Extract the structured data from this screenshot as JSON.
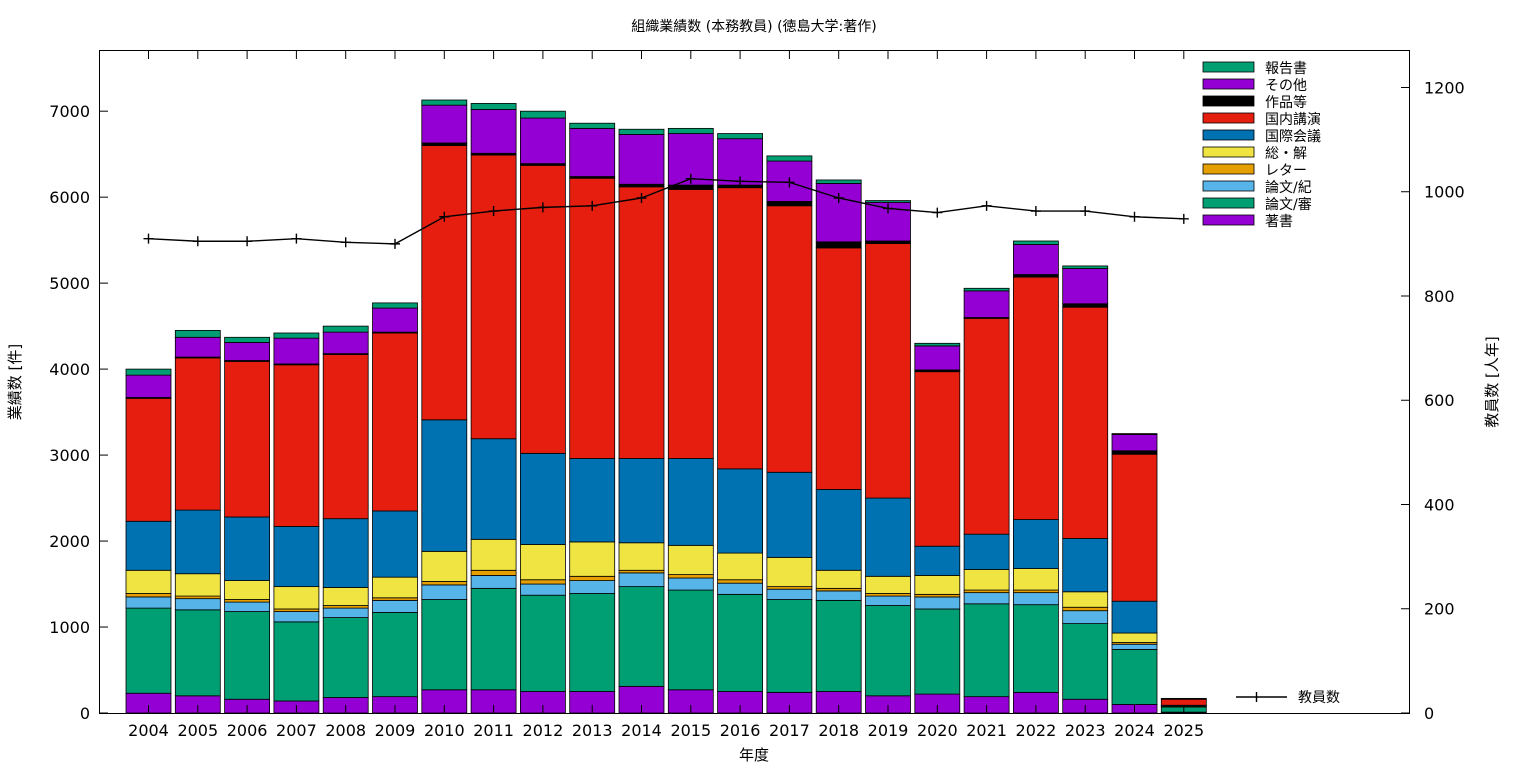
{
  "chart_data": {
    "type": "bar",
    "stacked": true,
    "title": "組織業績数 (本務教員) (徳島大学:著作)",
    "xlabel": "年度",
    "ylabel": "業績数 [件]",
    "y2label": "教員数 [人年]",
    "ylim": [
      0,
      7700
    ],
    "y2lim": [
      0,
      1270
    ],
    "yticks": [
      0,
      1000,
      2000,
      3000,
      4000,
      5000,
      6000,
      7000
    ],
    "y2ticks": [
      0,
      200,
      400,
      600,
      800,
      1000,
      1200
    ],
    "grid": false,
    "legend_position": "top-right",
    "categories": [
      "2004",
      "2005",
      "2006",
      "2007",
      "2008",
      "2009",
      "2010",
      "2011",
      "2012",
      "2013",
      "2014",
      "2015",
      "2016",
      "2017",
      "2018",
      "2019",
      "2020",
      "2021",
      "2022",
      "2023",
      "2024",
      "2025"
    ],
    "series": [
      {
        "name": "著書",
        "color": "#9400d3",
        "values": [
          230,
          200,
          160,
          140,
          180,
          190,
          270,
          270,
          250,
          250,
          310,
          270,
          250,
          240,
          250,
          200,
          220,
          190,
          240,
          160,
          100,
          10
        ]
      },
      {
        "name": "論文/審",
        "color": "#009e73",
        "values": [
          990,
          1000,
          1020,
          920,
          930,
          980,
          1050,
          1180,
          1120,
          1140,
          1160,
          1160,
          1130,
          1080,
          1060,
          1050,
          990,
          1080,
          1020,
          880,
          640,
          60
        ]
      },
      {
        "name": "論文/紀",
        "color": "#56b4e9",
        "values": [
          130,
          130,
          110,
          120,
          110,
          140,
          170,
          150,
          130,
          150,
          160,
          140,
          130,
          120,
          110,
          110,
          140,
          130,
          140,
          150,
          60,
          0
        ]
      },
      {
        "name": "レター",
        "color": "#e69f00",
        "values": [
          40,
          30,
          30,
          30,
          30,
          30,
          40,
          60,
          50,
          50,
          30,
          40,
          40,
          30,
          30,
          30,
          30,
          30,
          30,
          40,
          20,
          0
        ]
      },
      {
        "name": "総・解",
        "color": "#f0e442",
        "values": [
          270,
          260,
          220,
          260,
          210,
          240,
          350,
          360,
          410,
          400,
          320,
          340,
          310,
          340,
          210,
          200,
          220,
          240,
          250,
          180,
          110,
          10
        ]
      },
      {
        "name": "国際会議",
        "color": "#0072b2",
        "values": [
          570,
          740,
          740,
          700,
          800,
          770,
          1530,
          1170,
          1060,
          970,
          980,
          1010,
          980,
          990,
          940,
          910,
          340,
          410,
          570,
          620,
          370,
          10
        ]
      },
      {
        "name": "国内講演",
        "color": "#e51e10",
        "values": [
          1430,
          1770,
          1810,
          1880,
          1910,
          2070,
          3190,
          3300,
          3350,
          3260,
          3160,
          3130,
          3270,
          3100,
          2810,
          2960,
          2030,
          2510,
          2820,
          2690,
          1710,
          70
        ]
      },
      {
        "name": "作品等",
        "color": "#000000",
        "values": [
          10,
          10,
          10,
          10,
          10,
          10,
          30,
          20,
          20,
          20,
          30,
          50,
          30,
          50,
          70,
          30,
          20,
          10,
          30,
          40,
          40,
          0
        ]
      },
      {
        "name": "その他",
        "color": "#9400d3",
        "values": [
          260,
          230,
          210,
          300,
          250,
          280,
          440,
          510,
          530,
          560,
          580,
          600,
          540,
          470,
          680,
          450,
          280,
          310,
          350,
          410,
          190,
          0
        ]
      },
      {
        "name": "報告書",
        "color": "#009e73",
        "values": [
          70,
          80,
          60,
          60,
          70,
          60,
          60,
          70,
          80,
          60,
          60,
          60,
          60,
          60,
          40,
          20,
          30,
          30,
          40,
          30,
          10,
          10
        ]
      }
    ],
    "line": {
      "name": "教員数",
      "axis": "y2",
      "color": "#000000",
      "values": [
        910,
        905,
        905,
        910,
        903,
        900,
        952,
        963,
        970,
        973,
        988,
        1025,
        1020,
        1018,
        988,
        968,
        960,
        973,
        963,
        963,
        952,
        948
      ]
    }
  }
}
